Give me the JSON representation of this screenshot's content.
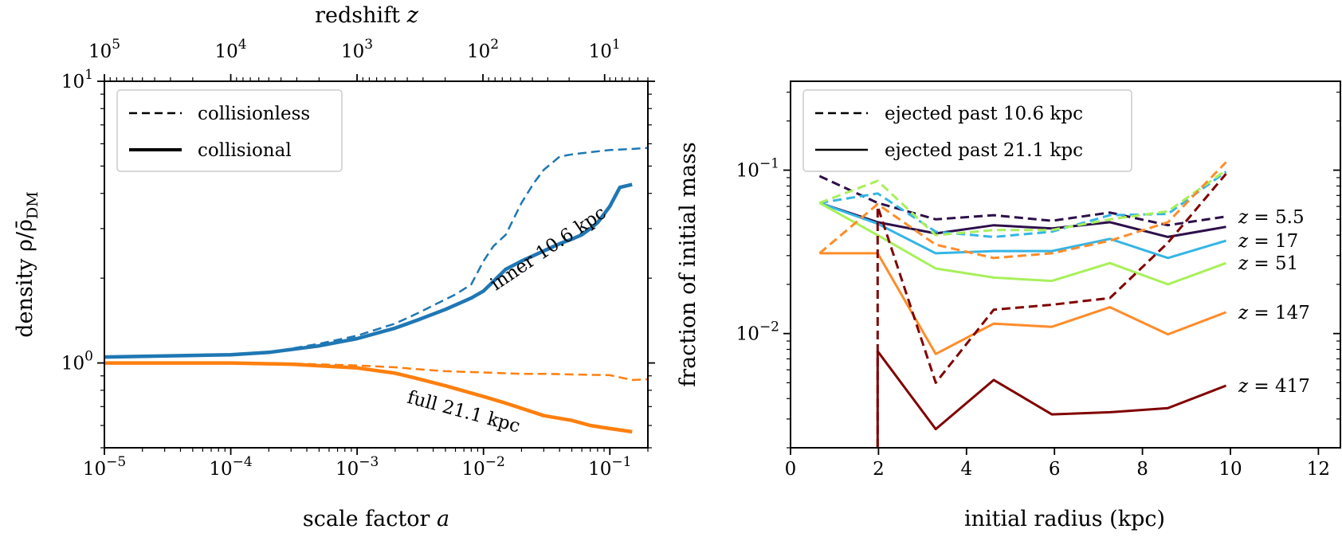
{
  "chart_data": [
    {
      "type": "line",
      "panel": "left",
      "xscale": "log",
      "yscale": "log",
      "xlim": [
        1e-05,
        0.2
      ],
      "ylim": [
        0.5,
        10
      ],
      "xlabel": "scale factor a",
      "ylabel": "density ρ/ρ̄DM",
      "xlabel_main": "scale factor ",
      "xlabel_var": "a",
      "ylabel_main": "density ρ/ρ̄",
      "ylabel_sub": "DM",
      "top_xlabel": "redshift z",
      "top_xlabel_main": "redshift ",
      "top_xlabel_var": "z",
      "xticks": [
        {
          "value": 1e-05,
          "base": "10",
          "exp": "−5"
        },
        {
          "value": 0.0001,
          "base": "10",
          "exp": "−4"
        },
        {
          "value": 0.001,
          "base": "10",
          "exp": "−3"
        },
        {
          "value": 0.01,
          "base": "10",
          "exp": "−2"
        },
        {
          "value": 0.1,
          "base": "10",
          "exp": "−1"
        }
      ],
      "yticks": [
        {
          "value": 1,
          "base": "10",
          "exp": "0"
        },
        {
          "value": 10,
          "base": "10",
          "exp": "1"
        }
      ],
      "top_xticks": [
        {
          "z": 100000,
          "base": "10",
          "exp": "5"
        },
        {
          "z": 10000,
          "base": "10",
          "exp": "4"
        },
        {
          "z": 1000,
          "base": "10",
          "exp": "3"
        },
        {
          "z": 100,
          "base": "10",
          "exp": "2"
        },
        {
          "z": 10,
          "base": "10",
          "exp": "1"
        }
      ],
      "legend": {
        "placement": "upper-left",
        "entries": [
          {
            "label": "collisionless",
            "style": "dashed"
          },
          {
            "label": "collisional",
            "style": "solid"
          }
        ]
      },
      "annotations": [
        {
          "text": "inner 10.6 kpc",
          "color": "#1f77b4",
          "at": [
            0.03,
            1.95
          ],
          "angle": -34
        },
        {
          "text": "full 21.1 kpc",
          "color": "#ff7f0e",
          "at": [
            0.013,
            0.7
          ],
          "angle": 15
        }
      ],
      "series": [
        {
          "name": "inner 10.6 kpc collisionless",
          "color": "#1f77b4",
          "style": "dashed",
          "x": [
            1e-05,
            0.0001,
            0.0002,
            0.0005,
            0.001,
            0.002,
            0.003,
            0.004,
            0.006,
            0.008,
            0.01,
            0.012,
            0.015,
            0.02,
            0.025,
            0.03,
            0.04,
            0.05,
            0.07,
            0.1,
            0.15,
            0.2
          ],
          "y": [
            1.05,
            1.07,
            1.09,
            1.17,
            1.25,
            1.38,
            1.5,
            1.6,
            1.75,
            1.9,
            2.3,
            2.6,
            2.85,
            3.7,
            4.35,
            4.85,
            5.4,
            5.5,
            5.6,
            5.7,
            5.75,
            5.8
          ]
        },
        {
          "name": "inner 10.6 kpc collisional",
          "color": "#1f77b4",
          "style": "solid",
          "x": [
            1e-05,
            0.0001,
            0.0002,
            0.0005,
            0.001,
            0.002,
            0.003,
            0.005,
            0.008,
            0.01,
            0.012,
            0.015,
            0.02,
            0.03,
            0.04,
            0.05,
            0.06,
            0.07,
            0.08,
            0.1,
            0.12,
            0.15
          ],
          "y": [
            1.05,
            1.07,
            1.09,
            1.15,
            1.22,
            1.33,
            1.42,
            1.55,
            1.7,
            1.8,
            1.95,
            2.15,
            2.3,
            2.5,
            2.65,
            2.75,
            2.85,
            3.0,
            3.15,
            3.6,
            4.2,
            4.3
          ]
        },
        {
          "name": "full 21.1 kpc collisionless",
          "color": "#ff7f0e",
          "style": "dashed",
          "x": [
            1e-05,
            0.0001,
            0.0003,
            0.001,
            0.002,
            0.003,
            0.005,
            0.01,
            0.02,
            0.03,
            0.05,
            0.1,
            0.15,
            0.2
          ],
          "y": [
            1.0,
            1.0,
            0.995,
            0.98,
            0.965,
            0.95,
            0.935,
            0.925,
            0.915,
            0.915,
            0.91,
            0.905,
            0.87,
            0.875
          ]
        },
        {
          "name": "full 21.1 kpc collisional",
          "color": "#ff7f0e",
          "style": "solid",
          "x": [
            1e-05,
            0.0001,
            0.0003,
            0.001,
            0.002,
            0.003,
            0.005,
            0.01,
            0.015,
            0.02,
            0.03,
            0.05,
            0.07,
            0.1,
            0.15
          ],
          "y": [
            1.0,
            1.0,
            0.99,
            0.96,
            0.92,
            0.88,
            0.83,
            0.76,
            0.72,
            0.69,
            0.65,
            0.625,
            0.6,
            0.585,
            0.57
          ]
        }
      ]
    },
    {
      "type": "line",
      "panel": "right",
      "xscale": "linear",
      "yscale": "log",
      "xlim": [
        0,
        12.5
      ],
      "ylim": [
        0.002,
        0.35
      ],
      "xlabel": "initial radius (kpc)",
      "ylabel": "fraction of initial mass",
      "xticks": [
        0,
        2,
        4,
        6,
        8,
        10,
        12
      ],
      "yticks": [
        {
          "value": 0.01,
          "base": "10",
          "exp": "−2"
        },
        {
          "value": 0.1,
          "base": "10",
          "exp": "−1"
        }
      ],
      "legend": {
        "placement": "upper-left",
        "entries": [
          {
            "label": "ejected past 10.6 kpc",
            "style": "dashed"
          },
          {
            "label": "ejected past 21.1 kpc",
            "style": "solid"
          }
        ]
      },
      "annotations": [
        {
          "text": "z = 5.5",
          "var": "z",
          "value": "= 5.5",
          "color": "#2d0f4a",
          "at_y": 0.052
        },
        {
          "text": "z = 17",
          "var": "z",
          "value": "= 17",
          "color": "#34b5e5",
          "at_y": 0.037
        },
        {
          "text": "z = 51",
          "var": "z",
          "value": "= 51",
          "color": "#a8f05a",
          "at_y": 0.027
        },
        {
          "text": "z = 147",
          "var": "z",
          "value": "= 147",
          "color": "#ff8c2a",
          "at_y": 0.0135
        },
        {
          "text": "z = 417",
          "var": "z",
          "value": "= 417",
          "color": "#800000",
          "at_y": 0.0048
        }
      ],
      "series": [
        {
          "name": "z=5.5 dashed",
          "color": "#2d0f4a",
          "style": "dashed",
          "x": [
            0.66,
            1.98,
            3.3,
            4.62,
            5.94,
            7.26,
            8.58,
            9.9
          ],
          "y": [
            0.092,
            0.063,
            0.05,
            0.053,
            0.049,
            0.055,
            0.046,
            0.052
          ]
        },
        {
          "name": "z=5.5 solid",
          "color": "#2d0f4a",
          "style": "solid",
          "x": [
            0.66,
            1.98,
            3.3,
            4.62,
            5.94,
            7.26,
            8.58,
            9.9
          ],
          "y": [
            0.063,
            0.048,
            0.041,
            0.046,
            0.044,
            0.048,
            0.039,
            0.045
          ]
        },
        {
          "name": "z=17 dashed",
          "color": "#34b5e5",
          "style": "dashed",
          "x": [
            0.66,
            1.98,
            3.3,
            4.62,
            5.94,
            7.26,
            8.58,
            9.9
          ],
          "y": [
            0.063,
            0.072,
            0.042,
            0.039,
            0.042,
            0.053,
            0.054,
            0.098
          ]
        },
        {
          "name": "z=17 solid",
          "color": "#34b5e5",
          "style": "solid",
          "x": [
            0.66,
            1.98,
            3.3,
            4.62,
            5.94,
            7.26,
            8.58,
            9.9
          ],
          "y": [
            0.063,
            0.047,
            0.031,
            0.032,
            0.032,
            0.038,
            0.029,
            0.037
          ]
        },
        {
          "name": "z=51 dashed",
          "color": "#a8f05a",
          "style": "dashed",
          "x": [
            0.66,
            1.98,
            3.3,
            4.62,
            5.94,
            7.26,
            8.58,
            9.9
          ],
          "y": [
            0.063,
            0.086,
            0.04,
            0.043,
            0.043,
            0.05,
            0.056,
            0.1
          ]
        },
        {
          "name": "z=51 solid",
          "color": "#a8f05a",
          "style": "solid",
          "x": [
            0.66,
            1.98,
            3.3,
            4.62,
            5.94,
            7.26,
            8.58,
            9.9
          ],
          "y": [
            0.063,
            0.04,
            0.025,
            0.022,
            0.021,
            0.027,
            0.02,
            0.027
          ]
        },
        {
          "name": "z=147 dashed",
          "color": "#ff8c2a",
          "style": "dashed",
          "x": [
            0.66,
            1.98,
            3.3,
            4.62,
            5.94,
            7.26,
            8.58,
            9.9
          ],
          "y": [
            0.031,
            0.062,
            0.035,
            0.029,
            0.031,
            0.037,
            0.048,
            0.112
          ]
        },
        {
          "name": "z=147 solid",
          "color": "#ff8c2a",
          "style": "solid",
          "x": [
            0.66,
            1.98,
            3.3,
            4.62,
            5.94,
            7.26,
            8.58,
            9.9
          ],
          "y": [
            0.031,
            0.031,
            0.0075,
            0.0115,
            0.011,
            0.0145,
            0.0099,
            0.0135
          ]
        },
        {
          "name": "z=417 dashed",
          "color": "#800000",
          "style": "dashed",
          "x": [
            1.98,
            1.98,
            3.3,
            4.62,
            5.94,
            7.26,
            8.58,
            9.9
          ],
          "y": [
            0.002,
            0.06,
            0.005,
            0.014,
            0.015,
            0.0165,
            0.036,
            0.095
          ]
        },
        {
          "name": "z=417 solid",
          "color": "#800000",
          "style": "solid",
          "x": [
            1.98,
            1.98,
            3.3,
            4.62,
            5.94,
            7.26,
            8.58,
            9.9
          ],
          "y": [
            0.002,
            0.0078,
            0.0026,
            0.0052,
            0.0032,
            0.0033,
            0.0035,
            0.0048
          ]
        }
      ]
    }
  ]
}
